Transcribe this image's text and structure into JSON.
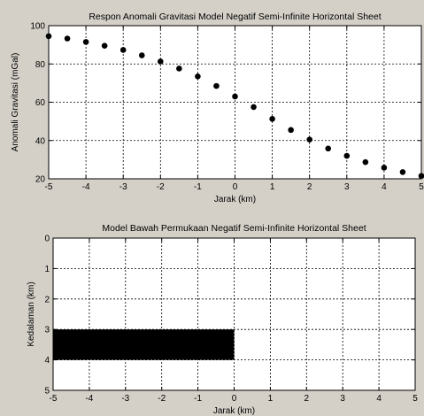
{
  "chart_data": [
    {
      "type": "scatter",
      "title": "Respon Anomali Gravitasi Model Negatif Semi-Infinite Horizontal Sheet",
      "xlabel": "Jarak (km)",
      "ylabel": "Anomali Gravitasi (mGal)",
      "xlim": [
        -5,
        5
      ],
      "ylim": [
        20,
        100
      ],
      "xticks": [
        -5,
        -4,
        -3,
        -2,
        -1,
        0,
        1,
        2,
        3,
        4,
        5
      ],
      "yticks": [
        20,
        40,
        60,
        80,
        100
      ],
      "grid": true,
      "grid_style": "dotted",
      "marker_color": "#000000",
      "x": [
        -5,
        -4.5,
        -4,
        -3.5,
        -3,
        -2.5,
        -2,
        -1.5,
        -1,
        -0.5,
        0,
        0.5,
        1,
        1.5,
        2,
        2.5,
        3,
        3.5,
        4,
        4.5,
        5
      ],
      "y": [
        94.5,
        93.3,
        91.5,
        89.5,
        87.3,
        84.5,
        81.3,
        77.6,
        73.5,
        68.5,
        63.0,
        57.5,
        51.3,
        45.5,
        40.5,
        35.8,
        32.0,
        28.7,
        25.8,
        23.5,
        21.5
      ]
    },
    {
      "type": "model",
      "title": "Model Bawah Permukaan Negatif Semi-Infinite Horizontal Sheet",
      "xlabel": "Jarak (km)",
      "ylabel": "Kedalaman (km)",
      "xlim": [
        -5,
        5
      ],
      "ylim": [
        0,
        5
      ],
      "y_reversed": true,
      "xticks": [
        -5,
        -4,
        -3,
        -2,
        -1,
        0,
        1,
        2,
        3,
        4,
        5
      ],
      "yticks": [
        0,
        1,
        2,
        3,
        4,
        5
      ],
      "grid": true,
      "grid_style": "dotted",
      "sheet": {
        "x_min": -5,
        "x_max": 0,
        "depth_top": 3,
        "depth_bottom": 4,
        "color": "#000000"
      }
    }
  ]
}
